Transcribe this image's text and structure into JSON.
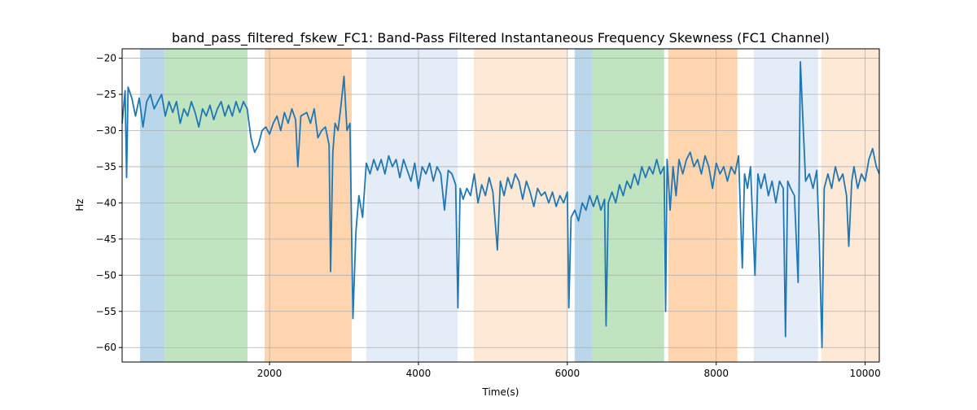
{
  "chart_data": {
    "type": "line",
    "title": "band_pass_filtered_fskew_FC1: Band-Pass Filtered Instantaneous Frequency Skewness (FC1 Channel)",
    "x_label": "Time(s)",
    "y_label": "Hz",
    "color": "#1f77b4",
    "grid": true,
    "xlim": [
      20,
      10190
    ],
    "ylim": [
      -62,
      -18.7
    ],
    "xticks": [
      2000,
      4000,
      6000,
      8000,
      10000
    ],
    "yticks": [
      {
        "value": -20,
        "label": "−20"
      },
      {
        "value": -25,
        "label": "−25"
      },
      {
        "value": -30,
        "label": "−30"
      },
      {
        "value": -35,
        "label": "−35"
      },
      {
        "value": -40,
        "label": "−40"
      },
      {
        "value": -45,
        "label": "−45"
      },
      {
        "value": -50,
        "label": "−50"
      },
      {
        "value": -55,
        "label": "−55"
      },
      {
        "value": -60,
        "label": "−60"
      }
    ],
    "spans": [
      {
        "start": 262,
        "end": 590,
        "color": "#bad6ea"
      },
      {
        "start": 590,
        "end": 1705,
        "color": "#c0e4c0"
      },
      {
        "start": 1934,
        "end": 3104,
        "color": "#ffd5b0"
      },
      {
        "start": 3300,
        "end": 4525,
        "color": "#e3ecf7"
      },
      {
        "start": 4743,
        "end": 6000,
        "color": "#fde9d6"
      },
      {
        "start": 6098,
        "end": 6339,
        "color": "#bad6ea"
      },
      {
        "start": 6339,
        "end": 7300,
        "color": "#c0e4c0"
      },
      {
        "start": 7355,
        "end": 8284,
        "color": "#ffd5b0"
      },
      {
        "start": 8503,
        "end": 9366,
        "color": "#e3ecf7"
      },
      {
        "start": 9410,
        "end": 10186,
        "color": "#fde9d6"
      }
    ],
    "x": [
      20,
      60,
      80,
      100,
      150,
      200,
      250,
      300,
      350,
      400,
      450,
      500,
      550,
      600,
      650,
      700,
      750,
      800,
      850,
      900,
      950,
      1000,
      1050,
      1100,
      1150,
      1200,
      1250,
      1300,
      1350,
      1400,
      1450,
      1500,
      1550,
      1600,
      1650,
      1700,
      1750,
      1800,
      1850,
      1900,
      1950,
      2000,
      2050,
      2100,
      2150,
      2200,
      2250,
      2300,
      2350,
      2380,
      2420,
      2500,
      2550,
      2600,
      2650,
      2700,
      2750,
      2800,
      2820,
      2850,
      2880,
      2920,
      2960,
      3000,
      3040,
      3080,
      3120,
      3160,
      3200,
      3250,
      3300,
      3350,
      3400,
      3450,
      3500,
      3550,
      3600,
      3650,
      3700,
      3750,
      3800,
      3850,
      3900,
      3950,
      4000,
      4050,
      4100,
      4150,
      4200,
      4250,
      4300,
      4350,
      4400,
      4450,
      4500,
      4530,
      4560,
      4600,
      4650,
      4700,
      4750,
      4800,
      4850,
      4900,
      4950,
      5000,
      5060,
      5100,
      5150,
      5200,
      5250,
      5300,
      5350,
      5400,
      5450,
      5500,
      5550,
      5600,
      5650,
      5700,
      5750,
      5800,
      5850,
      5900,
      5950,
      6000,
      6020,
      6050,
      6100,
      6150,
      6200,
      6250,
      6300,
      6350,
      6400,
      6450,
      6500,
      6520,
      6550,
      6600,
      6650,
      6700,
      6750,
      6800,
      6850,
      6900,
      6950,
      7000,
      7050,
      7100,
      7150,
      7200,
      7250,
      7300,
      7320,
      7340,
      7380,
      7420,
      7460,
      7500,
      7550,
      7600,
      7650,
      7700,
      7750,
      7800,
      7850,
      7900,
      7950,
      8000,
      8050,
      8100,
      8150,
      8200,
      8250,
      8300,
      8350,
      8380,
      8420,
      8460,
      8520,
      8560,
      8600,
      8650,
      8700,
      8750,
      8800,
      8850,
      8900,
      8930,
      8960,
      9000,
      9050,
      9100,
      9130,
      9170,
      9200,
      9250,
      9300,
      9350,
      9380,
      9420,
      9450,
      9500,
      9550,
      9600,
      9650,
      9700,
      9750,
      9780,
      9820,
      9850,
      9900,
      9950,
      10000,
      10050,
      10100,
      10150,
      10190
    ],
    "values": [
      -29,
      -24.5,
      -36.5,
      -24,
      -25.5,
      -28,
      -25.5,
      -29.5,
      -26,
      -25,
      -27,
      -26,
      -25,
      -28,
      -26,
      -27.5,
      -26,
      -29,
      -27,
      -28,
      -26,
      -27.5,
      -29.5,
      -27,
      -28,
      -26.5,
      -28.5,
      -27,
      -26,
      -28,
      -26.5,
      -28,
      -26,
      -27.5,
      -26,
      -27,
      -31,
      -33,
      -32,
      -30,
      -29.5,
      -30.5,
      -29,
      -28,
      -30,
      -27.5,
      -29,
      -27,
      -28.5,
      -35,
      -28,
      -27.5,
      -29,
      -27,
      -31,
      -30,
      -29.5,
      -32,
      -49.5,
      -33,
      -29,
      -30,
      -26.5,
      -22.5,
      -30,
      -29,
      -56,
      -44,
      -39,
      -42,
      -34.5,
      -36,
      -34,
      -35.5,
      -34,
      -36,
      -33.5,
      -35,
      -34,
      -36.5,
      -34,
      -35.5,
      -37,
      -34.5,
      -38,
      -35,
      -36,
      -34.5,
      -37,
      -35,
      -36,
      -41,
      -35.5,
      -36,
      -37.5,
      -54.5,
      -38,
      -39.5,
      -38,
      -39,
      -36,
      -40,
      -37.5,
      -39,
      -36.5,
      -38.5,
      -46.5,
      -37,
      -39,
      -36.5,
      -38,
      -36,
      -37,
      -39.5,
      -37,
      -38.5,
      -40.5,
      -38,
      -39,
      -38.5,
      -40,
      -38.5,
      -40.5,
      -39,
      -40,
      -38.5,
      -54.5,
      -42,
      -41,
      -42.5,
      -40,
      -41,
      -39,
      -40.5,
      -39,
      -41,
      -39.5,
      -57,
      -40,
      -38.5,
      -40,
      -37.5,
      -39,
      -37,
      -38,
      -36,
      -37.5,
      -35,
      -36.5,
      -35,
      -36,
      -34,
      -36,
      -35,
      -55,
      -34,
      -41,
      -35,
      -39,
      -34,
      -36,
      -34,
      -33,
      -35,
      -34,
      -36,
      -33.5,
      -35,
      -38,
      -34.5,
      -36,
      -35,
      -37,
      -35,
      -36,
      -33.5,
      -49,
      -36,
      -38,
      -35,
      -50,
      -36,
      -38,
      -36,
      -39,
      -37,
      -40,
      -37,
      -38,
      -58.5,
      -37,
      -38,
      -39,
      -51,
      -20.5,
      -30,
      -37,
      -36,
      -38,
      -35.5,
      -44,
      -60,
      -38,
      -36,
      -38,
      -35,
      -37,
      -36,
      -39,
      -46,
      -37,
      -35,
      -38,
      -36,
      -37,
      -34,
      -32.5,
      -35,
      -36
    ]
  }
}
